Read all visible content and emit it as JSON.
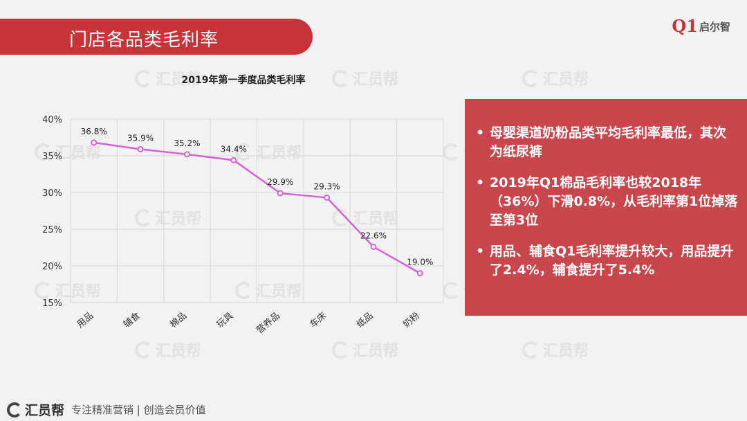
{
  "slide": {
    "title": "门店各品类毛利率",
    "brand": {
      "mark": "Q1",
      "name": "启尔智"
    },
    "watermark_text": "汇员帮"
  },
  "chart_data": {
    "type": "line",
    "title": "2019年第一季度品类毛利率",
    "categories": [
      "用品",
      "辅食",
      "棉品",
      "玩具",
      "营养品",
      "车床",
      "纸品",
      "奶粉"
    ],
    "series": [
      {
        "values": [
          36.8,
          35.9,
          35.2,
          34.4,
          29.9,
          29.3,
          22.6,
          19.0
        ],
        "labels": [
          "36.8%",
          "35.9%",
          "35.2%",
          "34.4%",
          "29.9%",
          "29.3%",
          "22.6%",
          "19.0%"
        ]
      }
    ],
    "ylim": [
      15,
      40
    ],
    "yticks": [
      15,
      20,
      25,
      30,
      35,
      40
    ],
    "ytick_labels": [
      "15%",
      "20%",
      "25%",
      "30%",
      "35%",
      "40%"
    ],
    "grid": true,
    "line_color": "#d660d6",
    "marker_fill": "#ffffff",
    "grid_color": "#d9d9d9"
  },
  "panel": {
    "bullets": [
      "母婴渠道奶粉品类平均毛利率最低，其次为纸尿裤",
      "2019年Q1棉品毛利率也较2018年（36%）下滑0.8%，从毛利率第1位掉落至第3位",
      "用品、辅食Q1毛利率提升较大，用品提升了2.4%，辅食提升了5.4%"
    ],
    "background": "#c8474d"
  },
  "footer": {
    "logo_text": "汇员帮",
    "slogan": "专注精准营销 | 创造会员价值"
  },
  "colors": {
    "accent": "#c8333a"
  }
}
